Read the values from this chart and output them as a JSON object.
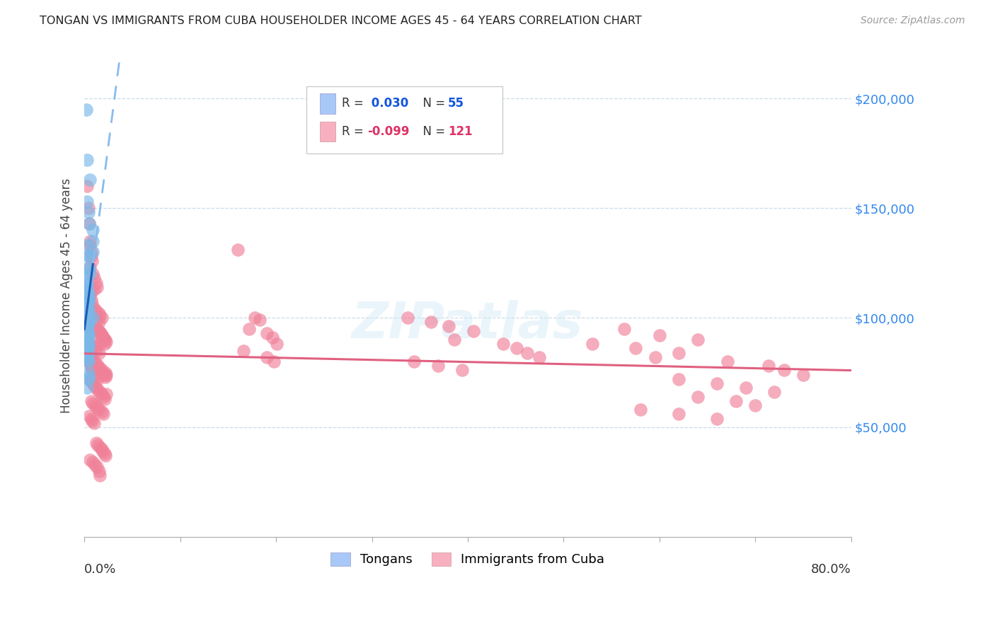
{
  "title": "TONGAN VS IMMIGRANTS FROM CUBA HOUSEHOLDER INCOME AGES 45 - 64 YEARS CORRELATION CHART",
  "source": "Source: ZipAtlas.com",
  "ylabel": "Householder Income Ages 45 - 64 years",
  "ytick_values": [
    50000,
    100000,
    150000,
    200000
  ],
  "ytick_labels": [
    "$50,000",
    "$100,000",
    "$150,000",
    "$200,000"
  ],
  "tongan_color": "#7ab8e8",
  "cuba_color": "#f08098",
  "tongan_line_solid_color": "#1a5cb5",
  "tongan_line_dash_color": "#88bbee",
  "cuba_line_color": "#e06080",
  "xmin": 0.0,
  "xmax": 0.8,
  "ymin": 0,
  "ymax": 220000,
  "tongan_x": [
    0.002,
    0.003,
    0.006,
    0.003,
    0.004,
    0.005,
    0.003,
    0.004,
    0.005,
    0.004,
    0.005,
    0.006,
    0.002,
    0.003,
    0.003,
    0.003,
    0.003,
    0.004,
    0.003,
    0.004,
    0.004,
    0.004,
    0.003,
    0.004,
    0.003,
    0.003,
    0.005,
    0.003,
    0.004,
    0.004,
    0.003,
    0.003,
    0.003,
    0.004,
    0.003,
    0.004,
    0.003,
    0.003,
    0.004,
    0.004,
    0.003,
    0.003,
    0.004,
    0.003,
    0.003,
    0.003,
    0.004,
    0.004,
    0.004,
    0.004,
    0.003,
    0.009,
    0.009,
    0.009,
    0.009
  ],
  "tongan_y": [
    195000,
    172000,
    163000,
    153000,
    148000,
    143000,
    133000,
    128000,
    128000,
    123000,
    122000,
    120000,
    118000,
    116000,
    115000,
    113000,
    112000,
    111000,
    110000,
    109000,
    108000,
    107000,
    105000,
    104000,
    103000,
    102000,
    100000,
    99000,
    98000,
    97000,
    96000,
    95000,
    94000,
    93000,
    92000,
    91000,
    90000,
    89000,
    88000,
    87000,
    86000,
    85000,
    84000,
    83000,
    82000,
    81000,
    80000,
    75000,
    73000,
    72000,
    68000,
    140000,
    135000,
    130000,
    100000
  ],
  "cuba_x": [
    0.003,
    0.004,
    0.005,
    0.006,
    0.006,
    0.007,
    0.007,
    0.008,
    0.006,
    0.009,
    0.01,
    0.012,
    0.013,
    0.01,
    0.007,
    0.006,
    0.007,
    0.008,
    0.005,
    0.011,
    0.012,
    0.015,
    0.016,
    0.018,
    0.013,
    0.015,
    0.009,
    0.01,
    0.012,
    0.014,
    0.017,
    0.018,
    0.019,
    0.021,
    0.014,
    0.016,
    0.01,
    0.011,
    0.012,
    0.015,
    0.006,
    0.007,
    0.008,
    0.01,
    0.012,
    0.014,
    0.016,
    0.018,
    0.019,
    0.021,
    0.022,
    0.006,
    0.007,
    0.009,
    0.01,
    0.012,
    0.014,
    0.016,
    0.018,
    0.02,
    0.021,
    0.007,
    0.009,
    0.011,
    0.013,
    0.015,
    0.018,
    0.02,
    0.005,
    0.007,
    0.008,
    0.01,
    0.012,
    0.014,
    0.016,
    0.018,
    0.019,
    0.021,
    0.022,
    0.006,
    0.009,
    0.011,
    0.013,
    0.015,
    0.016,
    0.003,
    0.004,
    0.005,
    0.006,
    0.007,
    0.007,
    0.008,
    0.01,
    0.011,
    0.012,
    0.014,
    0.004,
    0.005,
    0.006,
    0.013,
    0.015,
    0.017,
    0.018,
    0.02,
    0.021,
    0.023,
    0.021,
    0.022,
    0.023,
    0.023,
    0.16,
    0.178,
    0.183,
    0.172,
    0.19,
    0.196,
    0.201,
    0.166,
    0.19,
    0.198,
    0.337,
    0.362,
    0.38,
    0.406,
    0.386,
    0.437,
    0.451,
    0.462,
    0.475,
    0.344,
    0.369,
    0.394,
    0.563,
    0.6,
    0.64,
    0.53,
    0.575,
    0.62,
    0.596,
    0.671,
    0.714,
    0.73,
    0.75,
    0.62,
    0.66,
    0.69,
    0.72,
    0.64,
    0.68,
    0.7,
    0.58,
    0.62,
    0.66
  ],
  "cuba_y": [
    160000,
    150000,
    143000,
    135000,
    133000,
    130000,
    128000,
    126000,
    123000,
    120000,
    118000,
    116000,
    114000,
    113000,
    112000,
    110000,
    108000,
    106000,
    105000,
    104000,
    103000,
    102000,
    101000,
    100000,
    99000,
    98000,
    97000,
    96000,
    95000,
    94000,
    93000,
    92000,
    91000,
    90000,
    89000,
    88000,
    87000,
    86000,
    85000,
    84000,
    83000,
    82000,
    81000,
    80000,
    79000,
    78000,
    77000,
    76000,
    75000,
    74000,
    73000,
    72000,
    71000,
    70000,
    69000,
    68000,
    67000,
    66000,
    65000,
    64000,
    63000,
    62000,
    61000,
    60000,
    59000,
    58000,
    57000,
    56000,
    55000,
    54000,
    53000,
    52000,
    43000,
    42000,
    41000,
    40000,
    39000,
    38000,
    37000,
    35000,
    34000,
    33000,
    32000,
    30000,
    28000,
    83000,
    82000,
    80000,
    79000,
    78000,
    77000,
    76000,
    75000,
    74000,
    73000,
    72000,
    97000,
    96000,
    95000,
    95000,
    94000,
    93000,
    92000,
    91000,
    90000,
    89000,
    88000,
    75000,
    74000,
    65000,
    131000,
    100000,
    99000,
    95000,
    93000,
    91000,
    88000,
    85000,
    82000,
    80000,
    100000,
    98000,
    96000,
    94000,
    90000,
    88000,
    86000,
    84000,
    82000,
    80000,
    78000,
    76000,
    95000,
    92000,
    90000,
    88000,
    86000,
    84000,
    82000,
    80000,
    78000,
    76000,
    74000,
    72000,
    70000,
    68000,
    66000,
    64000,
    62000,
    60000,
    58000,
    56000,
    54000
  ]
}
